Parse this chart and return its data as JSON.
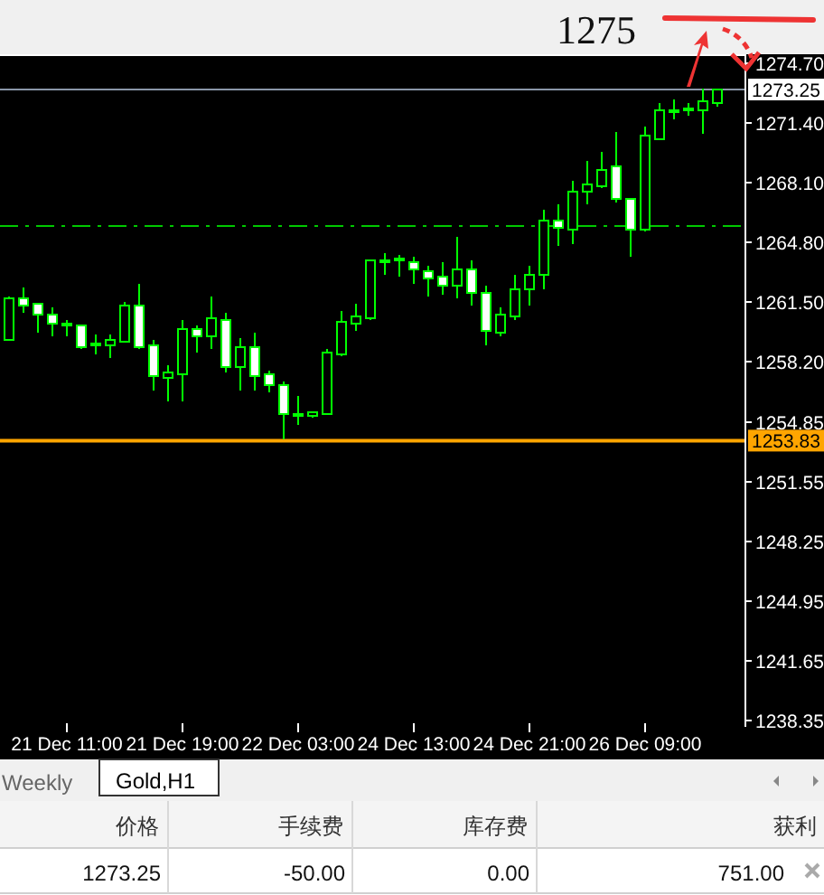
{
  "chart_data": {
    "type": "candlestick",
    "categories": [
      null,
      null,
      null,
      null,
      "21 Dec 11:00",
      null,
      null,
      null,
      null,
      null,
      null,
      null,
      "21 Dec 19:00",
      null,
      null,
      null,
      null,
      null,
      null,
      null,
      "22 Dec 03:00",
      null,
      null,
      null,
      null,
      null,
      null,
      null,
      "24 Dec 13:00",
      null,
      null,
      null,
      null,
      null,
      null,
      null,
      "24 Dec 21:00",
      null,
      null,
      null,
      null,
      null,
      null,
      null,
      "26 Dec 09:00",
      null,
      null,
      null,
      null,
      null
    ],
    "color": "#00ff00",
    "ohlc": [
      [
        1259.4,
        1261.8,
        1259.4,
        1261.7
      ],
      [
        1261.7,
        1262.3,
        1260.9,
        1261.3
      ],
      [
        1261.4,
        1261.4,
        1259.8,
        1260.8
      ],
      [
        1260.8,
        1261.2,
        1259.6,
        1260.3
      ],
      [
        1260.3,
        1260.5,
        1259.6,
        1260.2
      ],
      [
        1260.2,
        1260.2,
        1258.9,
        1259.0
      ],
      [
        1259.2,
        1259.7,
        1258.6,
        1259.1
      ],
      [
        1259.1,
        1259.7,
        1258.4,
        1259.4
      ],
      [
        1259.3,
        1261.5,
        1259.3,
        1261.3
      ],
      [
        1261.3,
        1262.5,
        1258.9,
        1259.0
      ],
      [
        1259.1,
        1259.4,
        1256.6,
        1257.4
      ],
      [
        1257.3,
        1258.0,
        1256.0,
        1257.6
      ],
      [
        1257.5,
        1260.5,
        1256.0,
        1260.0
      ],
      [
        1260.0,
        1260.2,
        1258.7,
        1259.6
      ],
      [
        1259.6,
        1261.8,
        1258.9,
        1260.6
      ],
      [
        1260.5,
        1260.9,
        1257.6,
        1257.9
      ],
      [
        1257.9,
        1259.5,
        1256.6,
        1259.0
      ],
      [
        1259.0,
        1259.8,
        1256.6,
        1257.4
      ],
      [
        1257.5,
        1257.7,
        1256.5,
        1256.9
      ],
      [
        1256.9,
        1257.1,
        1253.9,
        1255.3
      ],
      [
        1255.2,
        1256.3,
        1254.7,
        1255.3
      ],
      [
        1255.2,
        1255.4,
        1255.1,
        1255.4
      ],
      [
        1255.3,
        1258.9,
        1255.3,
        1258.7
      ],
      [
        1258.6,
        1261.0,
        1258.5,
        1260.4
      ],
      [
        1260.3,
        1261.4,
        1259.9,
        1260.7
      ],
      [
        1260.6,
        1263.8,
        1260.5,
        1263.8
      ],
      [
        1263.8,
        1264.2,
        1263.0,
        1263.8
      ],
      [
        1263.9,
        1264.1,
        1262.9,
        1263.8
      ],
      [
        1263.7,
        1264.0,
        1262.5,
        1263.3
      ],
      [
        1263.2,
        1263.5,
        1261.8,
        1262.8
      ],
      [
        1262.9,
        1263.7,
        1261.9,
        1262.4
      ],
      [
        1262.4,
        1265.1,
        1261.7,
        1263.3
      ],
      [
        1263.3,
        1263.8,
        1261.3,
        1262.0
      ],
      [
        1262.0,
        1262.4,
        1259.1,
        1259.9
      ],
      [
        1259.8,
        1261.2,
        1259.6,
        1260.8
      ],
      [
        1260.7,
        1263.0,
        1260.5,
        1262.2
      ],
      [
        1262.2,
        1263.5,
        1261.3,
        1263.0
      ],
      [
        1263.0,
        1266.6,
        1262.2,
        1266.0
      ],
      [
        1266.0,
        1266.9,
        1264.6,
        1265.6
      ],
      [
        1265.5,
        1268.2,
        1264.7,
        1267.6
      ],
      [
        1267.6,
        1269.3,
        1266.9,
        1268.0
      ],
      [
        1267.9,
        1269.8,
        1267.8,
        1268.8
      ],
      [
        1269.0,
        1270.9,
        1267.0,
        1267.2
      ],
      [
        1267.2,
        1267.2,
        1264.0,
        1265.5
      ],
      [
        1265.5,
        1271.2,
        1265.4,
        1270.7
      ],
      [
        1270.5,
        1272.5,
        1270.5,
        1272.1
      ],
      [
        1272.1,
        1272.7,
        1271.6,
        1272.1
      ],
      [
        1272.1,
        1272.5,
        1271.8,
        1272.2
      ],
      [
        1272.1,
        1273.3,
        1270.8,
        1272.6
      ],
      [
        1272.5,
        1273.3,
        1272.3,
        1273.25
      ]
    ],
    "ylim": [
      1238.2,
      1275.2
    ],
    "yticks": [
      {
        "value": 1274.7,
        "label": "1274.70"
      },
      {
        "value": 1271.4,
        "label": "1271.40"
      },
      {
        "value": 1268.1,
        "label": "1268.10"
      },
      {
        "value": 1264.8,
        "label": "1264.80"
      },
      {
        "value": 1261.5,
        "label": "1261.50"
      },
      {
        "value": 1258.2,
        "label": "1258.20"
      },
      {
        "value": 1254.85,
        "label": "1254.85"
      },
      {
        "value": 1251.55,
        "label": "1251.55"
      },
      {
        "value": 1248.25,
        "label": "1248.25"
      },
      {
        "value": 1244.95,
        "label": "1244.95"
      },
      {
        "value": 1241.65,
        "label": "1241.65"
      },
      {
        "value": 1238.35,
        "label": "1238.35"
      }
    ],
    "ref_lines": [
      {
        "axis": "y",
        "value": 1273.25,
        "label": "1273.25",
        "color": "#8a96a8",
        "line_style": "solid"
      },
      {
        "axis": "y",
        "value": 1265.7,
        "color": "#00c800",
        "line_style": "dashed"
      },
      {
        "axis": "y",
        "value": 1253.83,
        "label": "1253.83",
        "color": "#ffa500",
        "line_style": "solid"
      }
    ],
    "annotations": [
      "1275",
      "Weekly",
      "Gold,H1",
      "价格",
      "手续费",
      "库存费",
      "获利",
      "1273.25",
      "-50.00",
      "0.00",
      "751.00"
    ]
  }
}
